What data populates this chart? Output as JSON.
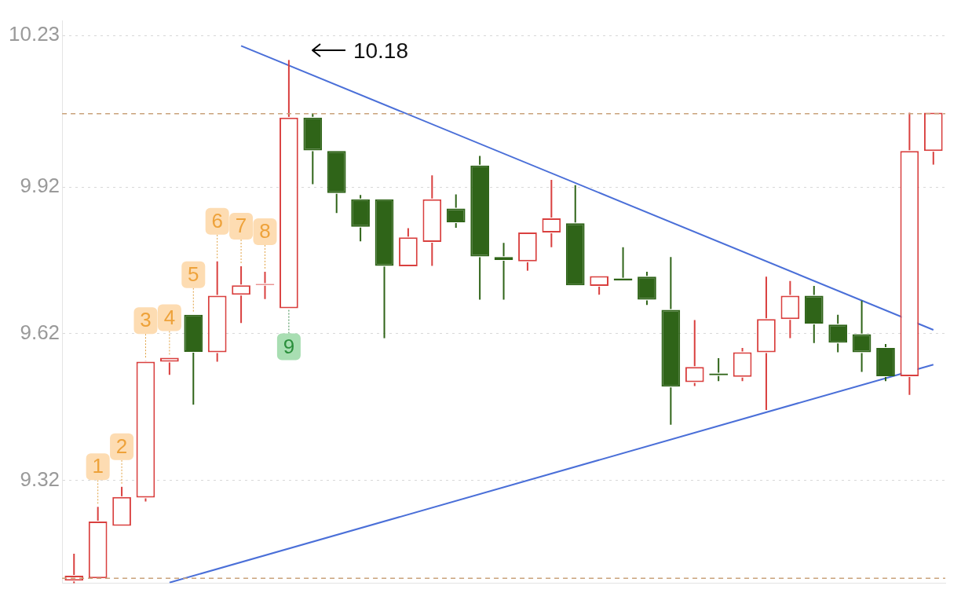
{
  "chart_data": {
    "type": "candlestick",
    "categories": [
      null,
      null,
      null,
      null,
      null,
      null,
      null,
      null,
      null,
      null,
      null,
      null,
      null,
      null,
      null,
      null,
      null,
      null,
      null,
      null,
      null,
      null,
      null,
      null,
      null,
      null,
      null,
      null,
      null,
      null,
      null,
      null,
      null,
      null,
      null,
      null,
      null
    ],
    "ohlc": [
      [
        9.115,
        9.17,
        9.11,
        9.125
      ],
      [
        9.12,
        9.266,
        9.12,
        9.236
      ],
      [
        9.227,
        9.307,
        9.227,
        9.286
      ],
      [
        9.285,
        9.565,
        9.277,
        9.563
      ],
      [
        9.563,
        9.571,
        9.536,
        9.571
      ],
      [
        9.659,
        9.659,
        9.475,
        9.583
      ],
      [
        9.582,
        9.768,
        9.563,
        9.698
      ],
      [
        9.7,
        9.758,
        9.642,
        9.719
      ],
      [
        9.72,
        9.747,
        9.691,
        9.722
      ],
      [
        9.672,
        10.18,
        9.672,
        10.062
      ],
      [
        10.062,
        10.071,
        9.926,
        9.995
      ],
      [
        9.994,
        9.994,
        9.867,
        9.908
      ],
      [
        9.895,
        9.904,
        9.809,
        9.839
      ],
      [
        9.895,
        9.895,
        9.611,
        9.759
      ],
      [
        9.758,
        9.836,
        9.758,
        9.817
      ],
      [
        9.808,
        9.944,
        9.759,
        9.895
      ],
      [
        9.876,
        9.905,
        9.837,
        9.848
      ],
      [
        9.964,
        9.984,
        9.69,
        9.778
      ],
      [
        9.777,
        9.806,
        9.69,
        9.771
      ],
      [
        9.768,
        9.827,
        9.749,
        9.827
      ],
      [
        9.827,
        9.935,
        9.797,
        9.856
      ],
      [
        9.846,
        9.924,
        9.719,
        9.719
      ],
      [
        9.718,
        9.738,
        9.7,
        9.738
      ],
      [
        9.733,
        9.797,
        9.729,
        9.729
      ],
      [
        9.737,
        9.747,
        9.679,
        9.69
      ],
      [
        9.669,
        9.777,
        9.434,
        9.512
      ],
      [
        9.521,
        9.648,
        9.513,
        9.552
      ],
      [
        9.539,
        9.57,
        9.523,
        9.535
      ],
      [
        9.532,
        9.591,
        9.523,
        9.582
      ],
      [
        9.582,
        9.737,
        9.464,
        9.65
      ],
      [
        9.65,
        9.728,
        9.611,
        9.698
      ],
      [
        9.698,
        9.718,
        9.601,
        9.641
      ],
      [
        9.639,
        9.659,
        9.582,
        9.602
      ],
      [
        9.619,
        9.688,
        9.542,
        9.582
      ],
      [
        9.591,
        9.599,
        9.523,
        9.533
      ],
      [
        9.533,
        10.072,
        9.495,
        9.994
      ],
      [
        9.994,
        10.072,
        9.966,
        10.072
      ]
    ],
    "colors": [
      "#d9403f",
      "#d9403f",
      "#d9403f",
      "#d9403f",
      "#d9403f",
      "#2f6418",
      "#d9403f",
      "#d9403f",
      "#d9403f",
      "#d9403f",
      "#2f6418",
      "#2f6418",
      "#2f6418",
      "#2f6418",
      "#d9403f",
      "#d9403f",
      "#2f6418",
      "#2f6418",
      "#2f6418",
      "#d9403f",
      "#d9403f",
      "#2f6418",
      "#d9403f",
      "#2f6418",
      "#2f6418",
      "#2f6418",
      "#d9403f",
      "#2f6418",
      "#d9403f",
      "#d9403f",
      "#d9403f",
      "#2f6418",
      "#2f6418",
      "#2f6418",
      "#2f6418",
      "#d9403f",
      "#d9403f"
    ],
    "value_labels": [
      null,
      "1",
      "2",
      "3",
      "4",
      "5",
      "6",
      "7",
      "8",
      "9",
      null,
      null,
      null,
      null,
      null,
      null,
      null,
      null,
      null,
      null,
      null,
      null,
      null,
      null,
      null,
      null,
      null,
      null,
      null,
      null,
      null,
      null,
      null,
      null,
      null,
      null,
      null
    ],
    "series": [
      {
        "type": "line",
        "color": "#4a6fd8",
        "values": [
          null,
          null,
          null,
          null,
          null,
          null,
          null,
          10.209,
          null,
          null,
          null,
          null,
          null,
          null,
          null,
          null,
          null,
          null,
          null,
          null,
          null,
          null,
          null,
          null,
          null,
          null,
          null,
          null,
          null,
          null,
          null,
          null,
          null,
          null,
          null,
          null,
          9.628
        ]
      },
      {
        "type": "line",
        "color": "#4a6fd8",
        "values": [
          null,
          null,
          null,
          null,
          9.111,
          null,
          null,
          null,
          null,
          null,
          null,
          null,
          null,
          null,
          null,
          null,
          null,
          null,
          null,
          null,
          null,
          null,
          null,
          null,
          null,
          null,
          null,
          null,
          null,
          null,
          null,
          null,
          null,
          null,
          null,
          null,
          9.557
        ]
      }
    ],
    "annotations": [
      "10.18"
    ],
    "ref_lines": [
      {
        "axis": "y",
        "value": 10.07,
        "color": "#c9a27a",
        "line_style": "dashed"
      },
      {
        "axis": "y",
        "value": 9.12,
        "color": "#c9a27a",
        "line_style": "dashed"
      }
    ],
    "ylim": [
      9.11,
      10.26
    ],
    "yticks": [
      10.23,
      9.92,
      9.62,
      9.32
    ],
    "grid": "y",
    "legend": false,
    "tick_labels": "y"
  }
}
